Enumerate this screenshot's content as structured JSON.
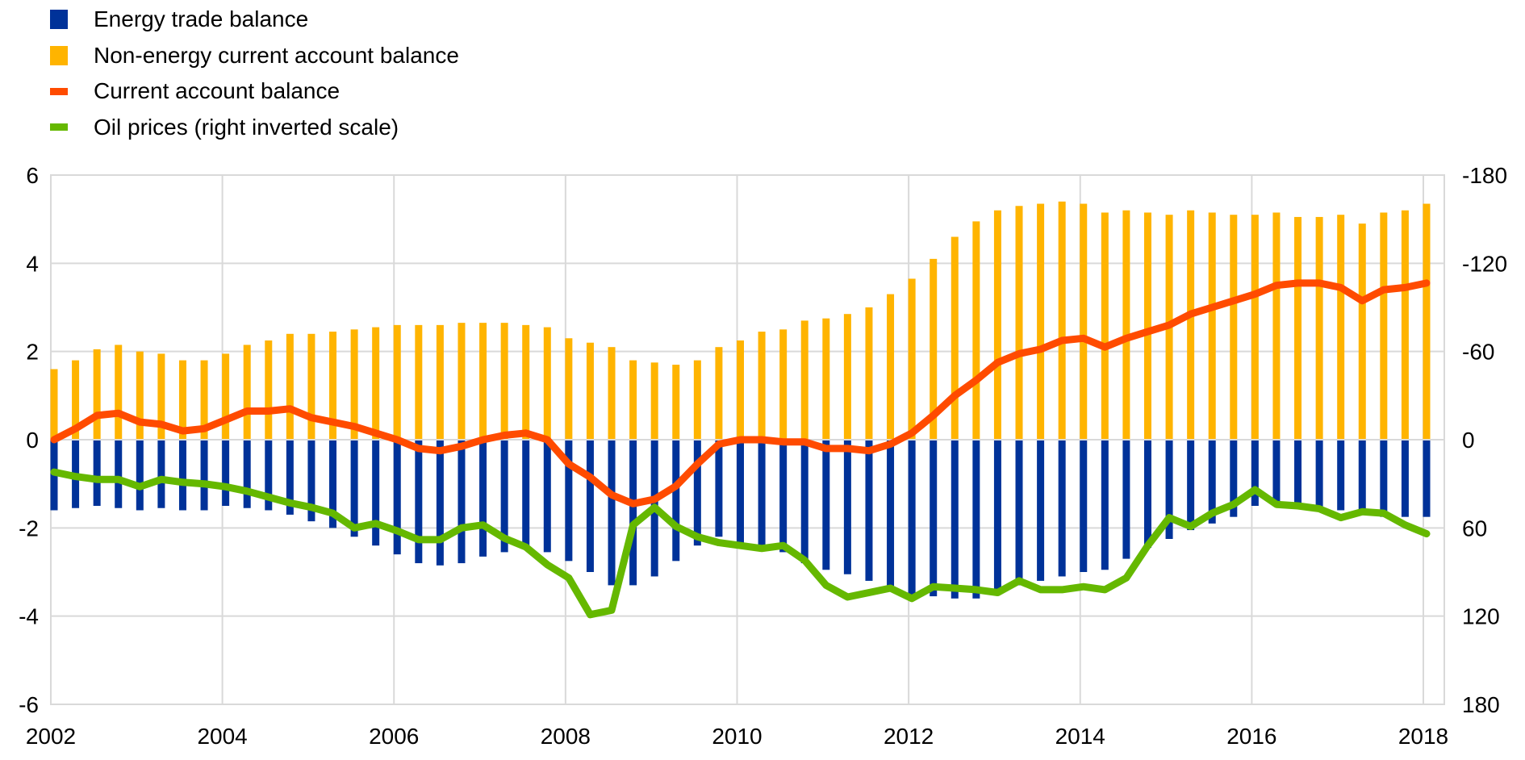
{
  "chart_data": {
    "type": "bar",
    "title": "",
    "xlabel": "",
    "ylabel": "",
    "legend_position": "top-left",
    "grid": true,
    "ylim": [
      -6,
      6
    ],
    "y2lim": [
      -180,
      180
    ],
    "y2_inverted": true,
    "y_ticks": [
      "6",
      "4",
      "2",
      "0",
      "-2",
      "-4",
      "-6"
    ],
    "y_tick_values": [
      6,
      4,
      2,
      0,
      -2,
      -4,
      -6
    ],
    "y2_ticks": [
      "-180",
      "-120",
      "-60",
      "0",
      "60",
      "120",
      "180"
    ],
    "y2_tick_values": [
      -180,
      -120,
      -60,
      0,
      60,
      120,
      180
    ],
    "x_ticks": [
      "2002",
      "2004",
      "2006",
      "2008",
      "2010",
      "2012",
      "2014",
      "2016",
      "2018"
    ],
    "x_tick_values": [
      2002,
      2004,
      2006,
      2008,
      2010,
      2012,
      2014,
      2016,
      2018
    ],
    "x_start": 2002,
    "x_step": 0.25,
    "series": [
      {
        "name": "Energy trade balance",
        "kind": "bar",
        "color": "#003299",
        "values": [
          -1.6,
          -1.55,
          -1.5,
          -1.55,
          -1.6,
          -1.55,
          -1.6,
          -1.6,
          -1.5,
          -1.55,
          -1.6,
          -1.7,
          -1.85,
          -2.0,
          -2.2,
          -2.4,
          -2.6,
          -2.8,
          -2.85,
          -2.8,
          -2.65,
          -2.55,
          -2.45,
          -2.55,
          -2.75,
          -3.0,
          -3.3,
          -3.3,
          -3.1,
          -2.75,
          -2.4,
          -2.2,
          -2.35,
          -2.5,
          -2.55,
          -2.8,
          -2.95,
          -3.05,
          -3.2,
          -3.4,
          -3.55,
          -3.55,
          -3.6,
          -3.6,
          -3.45,
          -3.3,
          -3.2,
          -3.1,
          -3.0,
          -2.95,
          -2.7,
          -2.45,
          -2.25,
          -2.05,
          -1.9,
          -1.75,
          -1.5,
          -1.45,
          -1.45,
          -1.6,
          -1.6,
          -1.6,
          -1.75,
          -1.75,
          -1.75
        ]
      },
      {
        "name": "Non-energy current account balance",
        "kind": "bar",
        "color": "#ffb400",
        "values": [
          1.6,
          1.8,
          2.05,
          2.15,
          2.0,
          1.95,
          1.8,
          1.8,
          1.95,
          2.15,
          2.25,
          2.4,
          2.4,
          2.45,
          2.5,
          2.55,
          2.6,
          2.6,
          2.6,
          2.65,
          2.65,
          2.65,
          2.6,
          2.55,
          2.3,
          2.2,
          2.1,
          1.8,
          1.75,
          1.7,
          1.8,
          2.1,
          2.25,
          2.45,
          2.5,
          2.7,
          2.75,
          2.85,
          3.0,
          3.3,
          3.65,
          4.1,
          4.6,
          4.95,
          5.2,
          5.3,
          5.35,
          5.4,
          5.35,
          5.15,
          5.2,
          5.15,
          5.1,
          5.2,
          5.15,
          5.1,
          5.1,
          5.15,
          5.05,
          5.05,
          5.1,
          4.9,
          5.15,
          5.2,
          5.35
        ]
      },
      {
        "name": "Current account balance",
        "kind": "line",
        "axis": "left",
        "color": "#ff4b00",
        "values": [
          0.0,
          0.25,
          0.55,
          0.6,
          0.4,
          0.35,
          0.2,
          0.25,
          0.45,
          0.65,
          0.65,
          0.7,
          0.5,
          0.4,
          0.3,
          0.15,
          0.0,
          -0.2,
          -0.25,
          -0.15,
          0.0,
          0.1,
          0.15,
          0.0,
          -0.55,
          -0.85,
          -1.25,
          -1.45,
          -1.35,
          -1.05,
          -0.55,
          -0.1,
          0.0,
          0.0,
          -0.05,
          -0.05,
          -0.2,
          -0.2,
          -0.25,
          -0.1,
          0.15,
          0.55,
          1.0,
          1.35,
          1.75,
          1.95,
          2.05,
          2.25,
          2.3,
          2.1,
          2.3,
          2.45,
          2.6,
          2.85,
          3.0,
          3.15,
          3.3,
          3.5,
          3.55,
          3.55,
          3.45,
          3.15,
          3.4,
          3.45,
          3.55
        ]
      },
      {
        "name": "Oil prices (right inverted scale)",
        "kind": "line",
        "axis": "right",
        "color": "#65b800",
        "values": [
          22,
          25,
          27,
          27,
          32,
          27,
          29,
          30,
          32,
          35,
          39,
          43,
          46,
          50,
          60,
          57,
          62,
          68,
          68,
          60,
          58,
          67,
          73,
          85,
          94,
          119,
          116,
          58,
          46,
          59,
          66,
          70,
          72,
          74,
          72,
          82,
          99,
          107,
          104,
          101,
          108,
          100,
          101,
          102,
          104,
          96,
          102,
          102,
          100,
          102,
          94,
          72,
          53,
          59,
          50,
          44,
          34,
          44,
          45,
          47,
          53,
          49,
          50,
          58,
          64
        ]
      }
    ]
  }
}
